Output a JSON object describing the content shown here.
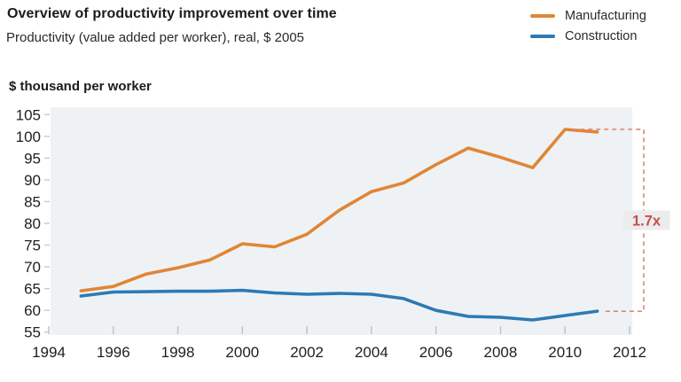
{
  "header": {
    "title": "Overview of productivity improvement over time",
    "subtitle": "Productivity (value added per worker), real, $ 2005"
  },
  "axis_unit_label": "$ thousand per worker",
  "annotation": {
    "label": "1.7x",
    "text_color": "#c64f4d",
    "dash_color": "#d9897c",
    "bg_color": "#ececec"
  },
  "chart_data": {
    "type": "line",
    "title": "Overview of productivity improvement over time",
    "subtitle": "Productivity (value added per worker), real, $ 2005",
    "ylabel": "$ thousand per worker",
    "xlim": [
      1994,
      2012
    ],
    "ylim": [
      55,
      105
    ],
    "x_ticks": [
      1994,
      1996,
      1998,
      2000,
      2002,
      2004,
      2006,
      2008,
      2010,
      2012
    ],
    "y_ticks": [
      55,
      60,
      65,
      70,
      75,
      80,
      85,
      90,
      95,
      100,
      105
    ],
    "grid": false,
    "legend_position": "top-right",
    "plot_bg": "#eff2f5",
    "x": [
      1995,
      1996,
      1997,
      1998,
      1999,
      2000,
      2001,
      2002,
      2003,
      2004,
      2005,
      2006,
      2007,
      2008,
      2009,
      2010,
      2011
    ],
    "series": [
      {
        "name": "Manufacturing",
        "color": "#e08636",
        "values": [
          64.5,
          65.5,
          68.3,
          69.8,
          71.6,
          75.3,
          74.6,
          77.5,
          83.0,
          87.3,
          89.3,
          93.5,
          97.3,
          95.2,
          92.8,
          101.6,
          101.0
        ]
      },
      {
        "name": "Construction",
        "color": "#2d7ab5",
        "values": [
          63.3,
          64.2,
          64.3,
          64.4,
          64.4,
          64.6,
          64.0,
          63.7,
          63.9,
          63.7,
          62.7,
          60.0,
          58.6,
          58.4,
          57.8,
          58.8,
          59.8
        ]
      }
    ],
    "annotation_label": "1.7x"
  }
}
